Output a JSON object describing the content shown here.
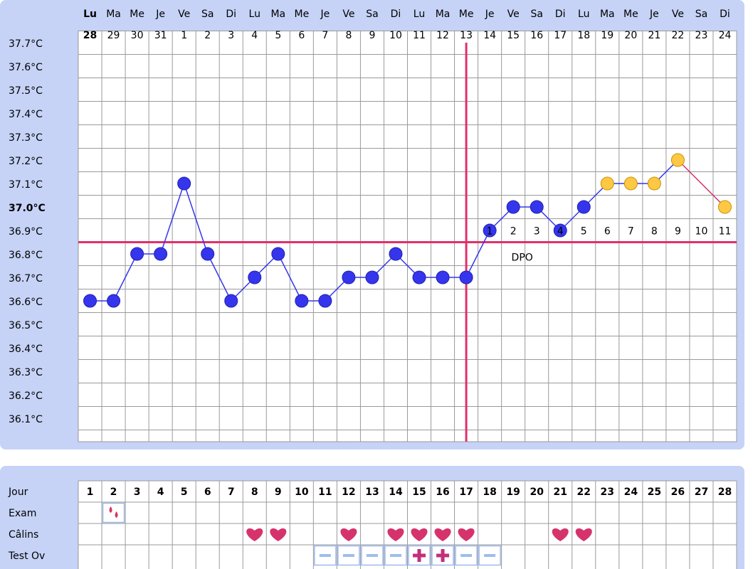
{
  "chart_data": {
    "type": "line",
    "categories": [
      "Lu",
      "Ma",
      "Me",
      "Je",
      "Ve",
      "Sa",
      "Di",
      "Lu",
      "Ma",
      "Me",
      "Je",
      "Ve",
      "Sa",
      "Di",
      "Lu",
      "Ma",
      "Me",
      "Je",
      "Ve",
      "Sa",
      "Di",
      "Lu",
      "Ma",
      "Me",
      "Je",
      "Ve",
      "Sa",
      "Di"
    ],
    "dates": [
      28,
      29,
      30,
      31,
      1,
      2,
      3,
      4,
      5,
      6,
      7,
      8,
      9,
      10,
      11,
      12,
      13,
      14,
      15,
      16,
      17,
      18,
      19,
      20,
      21,
      22,
      23,
      24
    ],
    "date_colors": [
      "#e0306a",
      "#000",
      "#000",
      "#000",
      "#000",
      "#000",
      "#000",
      "#000",
      "#000",
      "#000",
      "#000",
      "#000",
      "#000",
      "#000",
      "#000",
      "#000",
      "#000",
      "#000",
      "#000",
      "#000",
      "#000",
      "#000",
      "#000",
      "#000",
      "#000",
      "#000",
      "#000",
      "#000"
    ],
    "values": [
      36.6,
      36.6,
      36.8,
      36.8,
      37.1,
      36.8,
      36.6,
      36.7,
      36.8,
      36.6,
      36.6,
      36.7,
      36.7,
      36.8,
      36.7,
      36.7,
      36.7,
      36.9,
      37.0,
      37.0,
      36.9,
      37.0,
      37.1,
      37.1,
      37.1,
      37.2,
      null,
      37.0
    ],
    "point_colors": [
      "#3535ee",
      "#3535ee",
      "#3535ee",
      "#3535ee",
      "#3535ee",
      "#3535ee",
      "#3535ee",
      "#3535ee",
      "#3535ee",
      "#3535ee",
      "#3535ee",
      "#3535ee",
      "#3535ee",
      "#3535ee",
      "#3535ee",
      "#3535ee",
      "#3535ee",
      "#3535ee",
      "#3535ee",
      "#3535ee",
      "#3535ee",
      "#3535ee",
      "#ffc844",
      "#ffc844",
      "#ffc844",
      "#ffc844",
      "#ffc844",
      "#ffc844"
    ],
    "line_color": "#3535ee",
    "gap_line_color": "#d6336c",
    "ylim": [
      36.0,
      37.75
    ],
    "yticks": [
      {
        "value": 37.7,
        "label": "37.7°C"
      },
      {
        "value": 37.6,
        "label": "37.6°C"
      },
      {
        "value": 37.5,
        "label": "37.5°C"
      },
      {
        "value": 37.4,
        "label": "37.4°C"
      },
      {
        "value": 37.3,
        "label": "37.3°C"
      },
      {
        "value": 37.2,
        "label": "37.2°C"
      },
      {
        "value": 37.1,
        "label": "37.1°C"
      },
      {
        "value": 37.0,
        "label": "37.0°C",
        "color": "#e0306a"
      },
      {
        "value": 36.9,
        "label": "36.9°C"
      },
      {
        "value": 36.8,
        "label": "36.8°C"
      },
      {
        "value": 36.7,
        "label": "36.7°C"
      },
      {
        "value": 36.6,
        "label": "36.6°C"
      },
      {
        "value": 36.5,
        "label": "36.5°C"
      },
      {
        "value": 36.4,
        "label": "36.4°C"
      },
      {
        "value": 36.3,
        "label": "36.3°C"
      },
      {
        "value": 36.2,
        "label": "36.2°C"
      },
      {
        "value": 36.1,
        "label": "36.1°C"
      }
    ],
    "grid": true,
    "coverline": 36.85,
    "marker_color": "#e0306a",
    "ovulation_day": 17,
    "dpo": [
      null,
      null,
      null,
      null,
      null,
      null,
      null,
      null,
      null,
      null,
      null,
      null,
      null,
      null,
      null,
      null,
      null,
      1,
      2,
      3,
      4,
      5,
      6,
      7,
      8,
      9,
      10,
      11
    ],
    "dpo_label": "DPO"
  },
  "table": {
    "row_labels": [
      "Jour",
      "Exam",
      "Câlins",
      "Test Ov"
    ],
    "days": [
      1,
      2,
      3,
      4,
      5,
      6,
      7,
      8,
      9,
      10,
      11,
      12,
      13,
      14,
      15,
      16,
      17,
      18,
      19,
      20,
      21,
      22,
      23,
      24,
      25,
      26,
      27,
      28
    ],
    "day_colors": [
      "#000",
      "#000",
      "#000",
      "#000",
      "#000",
      "#000",
      "#000",
      "#000",
      "#000",
      "#000",
      "#000",
      "#000",
      "#000",
      "#3344dd",
      "#3344dd",
      "#3344dd",
      "#e0306a",
      "#3344dd",
      "#3344dd",
      "#3344dd",
      "#000",
      "#000",
      "#000",
      "#000",
      "#000",
      "#000",
      "#000",
      "#000"
    ],
    "exam_days": [
      2
    ],
    "calins_days": [
      8,
      9,
      12,
      14,
      15,
      16,
      17,
      21,
      22
    ],
    "test_ov_negative": [
      11,
      12,
      13,
      14,
      17,
      18
    ],
    "test_ov_positive": [
      15,
      16
    ]
  }
}
